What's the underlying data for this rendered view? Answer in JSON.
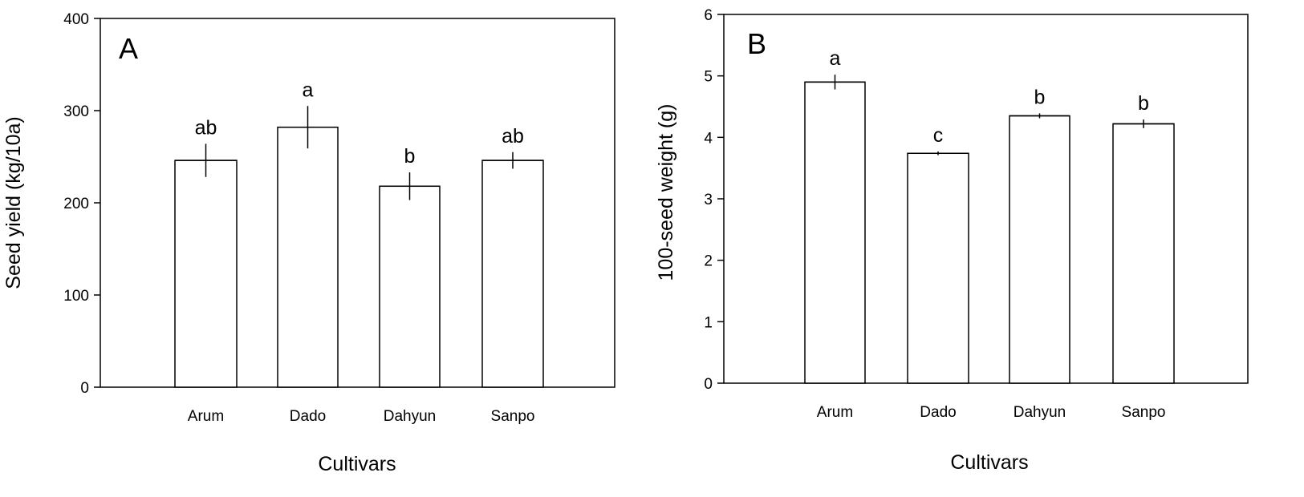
{
  "chart_data": [
    {
      "type": "bar",
      "panel_label": "A",
      "categories": [
        "Arum",
        "Dado",
        "Dahyun",
        "Sanpo"
      ],
      "values": [
        246,
        282,
        218,
        246
      ],
      "errors": [
        18,
        23,
        15,
        9
      ],
      "significance": [
        "ab",
        "a",
        "b",
        "ab"
      ],
      "xlabel": "Cultivars",
      "ylabel": "Seed yield (kg/10a)",
      "ylim": [
        0,
        400
      ],
      "yticks": [
        0,
        100,
        200,
        300,
        400
      ],
      "grid": false
    },
    {
      "type": "bar",
      "panel_label": "B",
      "categories": [
        "Arum",
        "Dado",
        "Dahyun",
        "Sanpo"
      ],
      "values": [
        4.9,
        3.74,
        4.35,
        4.22
      ],
      "errors": [
        0.12,
        0.03,
        0.04,
        0.07
      ],
      "significance": [
        "a",
        "c",
        "b",
        "b"
      ],
      "xlabel": "Cultivars",
      "ylabel": "100-seed weight (g)",
      "ylim": [
        0,
        6
      ],
      "yticks": [
        0,
        1,
        2,
        3,
        4,
        5,
        6
      ],
      "grid": false
    }
  ]
}
